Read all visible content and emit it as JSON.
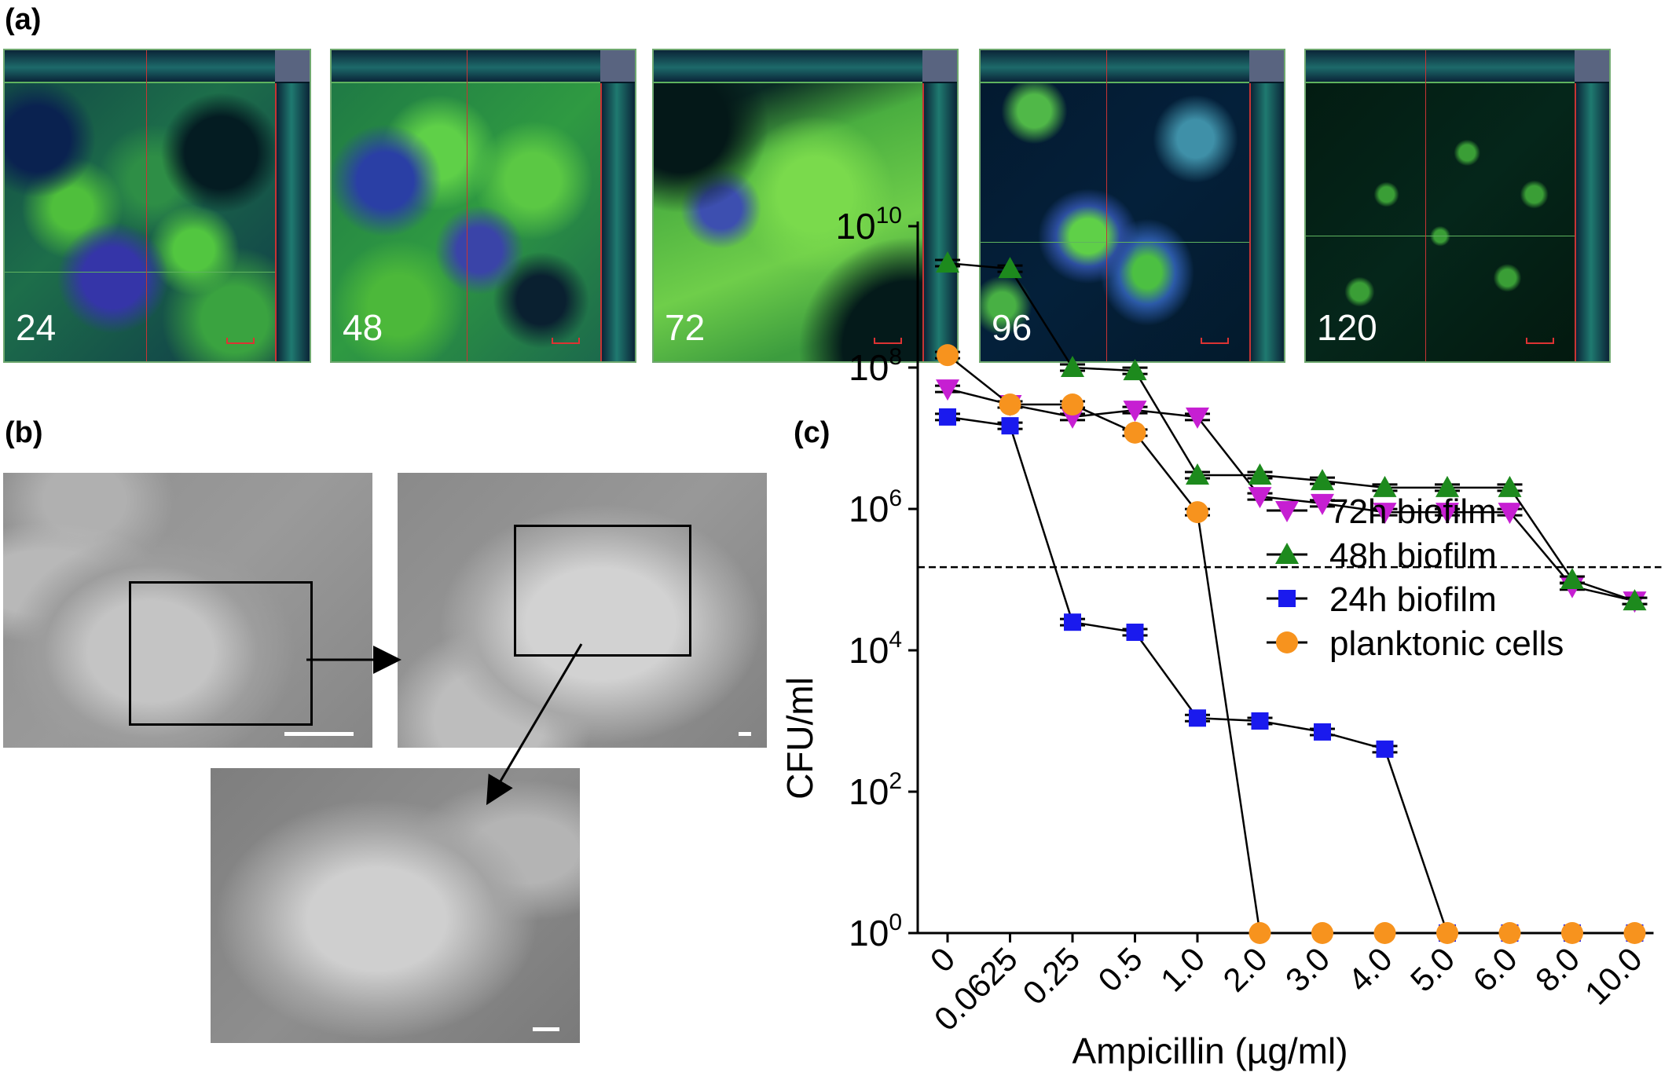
{
  "panels": {
    "a": {
      "label": "(a)",
      "images": [
        {
          "time": "24"
        },
        {
          "time": "48"
        },
        {
          "time": "72"
        },
        {
          "time": "96"
        },
        {
          "time": "120"
        }
      ]
    },
    "b": {
      "label": "(b)"
    },
    "c": {
      "label": "(c)"
    }
  },
  "colors": {
    "series_72h": "#c61fd2",
    "series_48h": "#1d8a1d",
    "series_24h": "#1a1aee",
    "series_planktonic": "#f7931e",
    "line": "#000000"
  },
  "chart_data": {
    "type": "scatter",
    "ylabel": "CFU/ml",
    "xlabel": "Ampicillin (µg/ml)",
    "categories": [
      "0",
      "0.0625",
      "0.25",
      "0.5",
      "1.0",
      "2.0",
      "3.0",
      "4.0",
      "5.0",
      "6.0",
      "8.0",
      "10.0"
    ],
    "yscale": "log",
    "ylim": [
      1,
      10000000000
    ],
    "yticks": [
      {
        "base": "10",
        "exp": "0"
      },
      {
        "base": "10",
        "exp": "2"
      },
      {
        "base": "10",
        "exp": "4"
      },
      {
        "base": "10",
        "exp": "6"
      },
      {
        "base": "10",
        "exp": "8"
      },
      {
        "base": "10",
        "exp": "10"
      }
    ],
    "threshold": 150000,
    "legend_position": "top-right",
    "series": [
      {
        "name": "72h biofilm",
        "marker": "triangle-down",
        "values": [
          50000000,
          30000000,
          20000000,
          25000000,
          20000000,
          1500000,
          1200000,
          900000,
          900000,
          900000,
          80000,
          50000
        ]
      },
      {
        "name": "48h biofilm",
        "marker": "triangle-up",
        "values": [
          3000000000,
          2500000000,
          100000000,
          90000000,
          3000000,
          3000000,
          2500000,
          2000000,
          2000000,
          2000000,
          100000,
          50000
        ]
      },
      {
        "name": "24h biofilm",
        "marker": "square",
        "values": [
          20000000,
          15000000,
          25000,
          18000,
          1100,
          1000,
          700,
          400,
          1,
          1,
          1,
          1
        ]
      },
      {
        "name": "planktonic cells",
        "marker": "circle",
        "values": [
          150000000,
          30000000,
          30000000,
          12000000,
          900000,
          1,
          1,
          1,
          1,
          1,
          1,
          1
        ]
      }
    ]
  }
}
